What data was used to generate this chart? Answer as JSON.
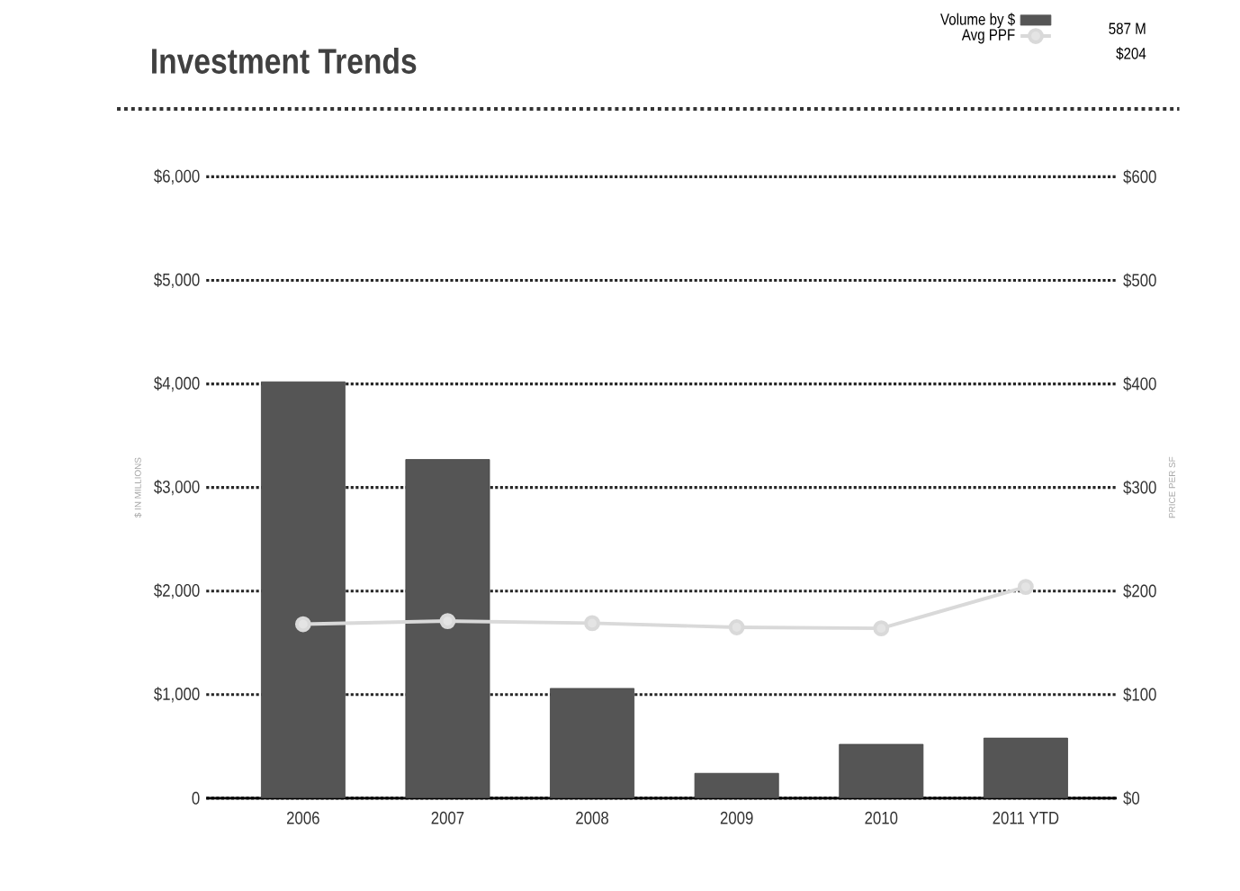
{
  "chart_data": {
    "type": "bar",
    "title": "Investment Trends",
    "ylabel": "$ IN MILLIONS",
    "y2label": "PRICE PER SF",
    "categories": [
      "2006",
      "2007",
      "2008",
      "2009",
      "2010",
      "2011 YTD"
    ],
    "series": [
      {
        "name": "Volume by $",
        "color": "#555555",
        "values": [
          4020,
          3270,
          1060,
          240,
          520,
          580
        ]
      },
      {
        "name": "Avg PPF",
        "type": "line",
        "axis": "y2",
        "color": "#d9d9d9",
        "values": [
          168,
          171,
          169,
          165,
          164,
          204
        ]
      }
    ],
    "ylim": [
      0,
      6000
    ],
    "yticks": [
      {
        "value": 0,
        "label": "0"
      },
      {
        "value": 1000,
        "label": "$1,000"
      },
      {
        "value": 2000,
        "label": "$2,000"
      },
      {
        "value": 3000,
        "label": "$3,000"
      },
      {
        "value": 4000,
        "label": "$4,000"
      },
      {
        "value": 5000,
        "label": "$5,000"
      },
      {
        "value": 6000,
        "label": "$6,000"
      }
    ],
    "y2lim": [
      0,
      600
    ],
    "y2ticks": [
      {
        "value": 0,
        "label": "$0"
      },
      {
        "value": 100,
        "label": "$100"
      },
      {
        "value": 200,
        "label": "$200"
      },
      {
        "value": 300,
        "label": "$300"
      },
      {
        "value": 400,
        "label": "$400"
      },
      {
        "value": 500,
        "label": "$500"
      },
      {
        "value": 600,
        "label": "$600"
      }
    ],
    "grid": "y",
    "legend": "top right",
    "marker": "circle",
    "annotations": [
      "587 M",
      "$204"
    ]
  }
}
